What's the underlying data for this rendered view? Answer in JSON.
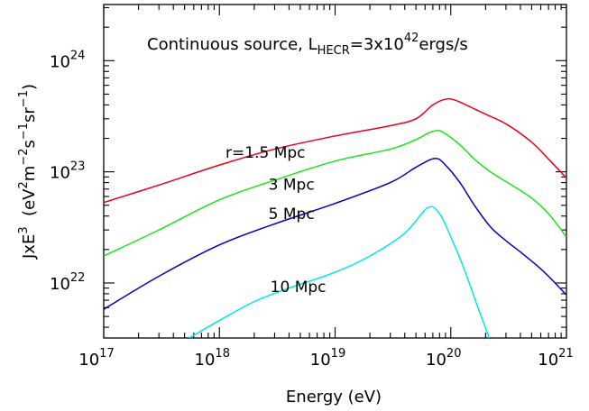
{
  "chart_data": {
    "type": "line",
    "title": {
      "main": "Continuous source, L",
      "sub": "HECR",
      "eq": "=3x10",
      "sup": "42",
      "unit": "ergs/s"
    },
    "xlabel": "Energy  (eV)",
    "ylabel": {
      "a": "JxE",
      "a_sup": "3",
      "b": "  (eV",
      "b_sup": "2",
      "c": "m",
      "c_sup": "−2",
      "d": "s",
      "d_sup": "−1",
      "e": "sr",
      "e_sup": "−1",
      "f": ")"
    },
    "x_scale": "log",
    "y_scale": "log",
    "xlim": [
      1e+17,
      1e+21
    ],
    "ylim": [
      3.2e+21,
      3.2e+24
    ],
    "x_ticks": [
      {
        "base": "10",
        "exp": "17"
      },
      {
        "base": "10",
        "exp": "18"
      },
      {
        "base": "10",
        "exp": "19"
      },
      {
        "base": "10",
        "exp": "20"
      },
      {
        "base": "10",
        "exp": "21"
      }
    ],
    "y_ticks": [
      {
        "base": "10",
        "exp": "22"
      },
      {
        "base": "10",
        "exp": "23"
      },
      {
        "base": "10",
        "exp": "24"
      }
    ],
    "grid": false,
    "series": [
      {
        "name": "r=1.5 Mpc",
        "color": "#e8001c",
        "x": [
          1e+17,
          3e+17,
          1e+18,
          3e+18,
          1e+19,
          3e+19,
          5e+19,
          7e+19,
          9e+19,
          1.1e+20,
          1.5e+20,
          2e+20,
          3e+20,
          5e+20,
          7e+20,
          1e+21
        ],
        "y": [
          5.3e+22,
          7.6e+22,
          1.15e+23,
          1.6e+23,
          2.1e+23,
          2.6e+23,
          3e+23,
          4e+23,
          4.5e+23,
          4.4e+23,
          3.8e+23,
          3.3e+23,
          2.7e+23,
          1.85e+23,
          1.3e+23,
          8.8e+22
        ]
      },
      {
        "name": "3 Mpc",
        "color": "#19e619",
        "x": [
          1e+17,
          3e+17,
          1e+18,
          3e+18,
          1e+19,
          3e+19,
          5e+19,
          6.5e+19,
          7.8e+19,
          9e+19,
          1.2e+20,
          1.6e+20,
          2.2e+20,
          3.5e+20,
          5e+20,
          7e+20,
          1e+21
        ],
        "y": [
          1.75e+22,
          3e+22,
          5.6e+22,
          8.4e+22,
          1.25e+23,
          1.6e+23,
          1.95e+23,
          2.25e+23,
          2.35e+23,
          2.2e+23,
          1.75e+23,
          1.3e+23,
          1e+23,
          7.4e+22,
          5.8e+22,
          4.2e+22,
          2.6e+22
        ]
      },
      {
        "name": "5 Mpc",
        "color": "#0000c0",
        "x": [
          1e+17,
          3e+17,
          1e+18,
          3e+18,
          1e+19,
          3e+19,
          5e+19,
          7.3e+19,
          9e+19,
          1.2e+20,
          1.6e+20,
          2.2e+20,
          3e+20,
          4e+20,
          5.5e+20,
          7e+20,
          1e+21
        ],
        "y": [
          5.8e+21,
          1.15e+22,
          2.2e+22,
          3.4e+22,
          5.2e+22,
          8e+22,
          1.1e+23,
          1.32e+23,
          1.15e+23,
          8e+22,
          5e+22,
          3.2e+22,
          2.4e+22,
          1.9e+22,
          1.45e+22,
          1.15e+22,
          7.8e+21
        ]
      },
      {
        "name": "10 Mpc",
        "color": "#00e8e8",
        "x": [
          5.5e+17,
          1e+18,
          2e+18,
          4e+18,
          1e+19,
          2e+19,
          4e+19,
          6.3e+19,
          8e+19,
          1e+20,
          1.3e+20,
          1.7e+20,
          2.15e+20
        ],
        "y": [
          3.2e+21,
          4.6e+21,
          6.8e+21,
          9e+21,
          1.25e+22,
          1.75e+22,
          2.8e+22,
          4.75e+22,
          4.2e+22,
          2.6e+22,
          1.35e+22,
          6.2e+21,
          3.2e+21
        ]
      }
    ],
    "annotations": [
      {
        "text": "r=1.5 Mpc",
        "x": 2.5e+18,
        "y": 1.5e+23
      },
      {
        "text": "3 Mpc",
        "x": 4.2e+18,
        "y": 7.7e+22
      },
      {
        "text": "5 Mpc",
        "x": 4.2e+18,
        "y": 4.2e+22
      },
      {
        "text": "10 Mpc",
        "x": 4.8e+18,
        "y": 9.3e+21
      }
    ]
  }
}
